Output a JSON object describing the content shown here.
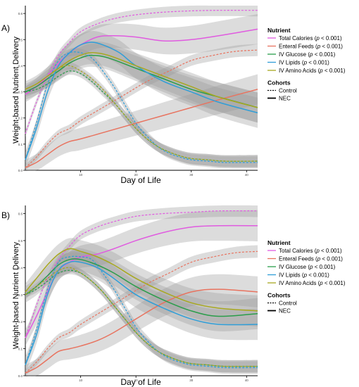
{
  "chart_data": [
    {
      "panel_label": "A)",
      "type": "line",
      "xlabel": "Day of Life",
      "ylabel": "Weight-based Nutrient Delivery",
      "xticks": [
        10,
        20,
        30,
        40
      ],
      "yticks": [
        0.0,
        0.1,
        0.2,
        0.3,
        0.4,
        0.5,
        0.6
      ],
      "xlim": [
        0,
        42
      ],
      "ylim": [
        0,
        0.63
      ],
      "series": [
        {
          "name": "Total Calories",
          "color": "#e05be0",
          "cohort": "Control",
          "x": [
            0,
            2,
            4,
            6,
            8,
            10,
            13,
            16,
            20,
            25,
            30,
            35,
            42
          ],
          "y": [
            0.14,
            0.26,
            0.36,
            0.44,
            0.49,
            0.53,
            0.56,
            0.58,
            0.595,
            0.605,
            0.61,
            0.612,
            0.612
          ]
        },
        {
          "name": "Total Calories",
          "color": "#e05be0",
          "cohort": "NEC",
          "x": [
            0,
            2,
            4,
            6,
            8,
            10,
            13,
            16,
            20,
            25,
            30,
            35,
            42
          ],
          "y": [
            0.29,
            0.32,
            0.36,
            0.41,
            0.45,
            0.48,
            0.51,
            0.515,
            0.51,
            0.495,
            0.5,
            0.515,
            0.54
          ]
        },
        {
          "name": "Enteral Feeds",
          "color": "#e8735f",
          "cohort": "Control",
          "x": [
            0,
            2,
            4,
            6,
            8,
            10,
            14,
            18,
            22,
            26,
            30,
            34,
            38,
            42
          ],
          "y": [
            0.01,
            0.05,
            0.1,
            0.14,
            0.16,
            0.19,
            0.24,
            0.29,
            0.34,
            0.38,
            0.42,
            0.44,
            0.455,
            0.46
          ]
        },
        {
          "name": "Enteral Feeds",
          "color": "#e8735f",
          "cohort": "NEC",
          "x": [
            0,
            2,
            4,
            6,
            8,
            10,
            15,
            20,
            25,
            30,
            35,
            42
          ],
          "y": [
            0.01,
            0.03,
            0.06,
            0.09,
            0.11,
            0.12,
            0.15,
            0.18,
            0.21,
            0.24,
            0.27,
            0.31
          ]
        },
        {
          "name": "IV Glucose",
          "color": "#2a9d4a",
          "cohort": "Control",
          "x": [
            0,
            2,
            4,
            6,
            8,
            10,
            12,
            14,
            16,
            18,
            20,
            22,
            24,
            26,
            28,
            30,
            33,
            36,
            42
          ],
          "y": [
            0.3,
            0.31,
            0.33,
            0.36,
            0.38,
            0.37,
            0.34,
            0.3,
            0.26,
            0.21,
            0.16,
            0.12,
            0.09,
            0.07,
            0.055,
            0.045,
            0.04,
            0.035,
            0.035
          ]
        },
        {
          "name": "IV Glucose",
          "color": "#2a9d4a",
          "cohort": "NEC",
          "x": [
            0,
            2,
            4,
            6,
            8,
            10,
            12,
            15,
            20,
            25,
            30,
            35,
            42
          ],
          "y": [
            0.3,
            0.32,
            0.35,
            0.38,
            0.41,
            0.43,
            0.44,
            0.43,
            0.39,
            0.35,
            0.31,
            0.28,
            0.24
          ]
        },
        {
          "name": "IV Lipids",
          "color": "#2f9ed8",
          "cohort": "Control",
          "x": [
            0,
            2,
            4,
            6,
            8,
            10,
            12,
            14,
            16,
            18,
            20,
            22,
            24,
            26,
            28,
            30,
            33,
            36,
            42
          ],
          "y": [
            0.04,
            0.18,
            0.33,
            0.42,
            0.45,
            0.45,
            0.43,
            0.38,
            0.32,
            0.25,
            0.18,
            0.13,
            0.09,
            0.065,
            0.05,
            0.04,
            0.035,
            0.03,
            0.03
          ]
        },
        {
          "name": "IV Lipids",
          "color": "#2f9ed8",
          "cohort": "NEC",
          "x": [
            0,
            2,
            4,
            6,
            8,
            10,
            12,
            14,
            17,
            20,
            25,
            30,
            35,
            42
          ],
          "y": [
            0.04,
            0.16,
            0.3,
            0.4,
            0.45,
            0.48,
            0.49,
            0.48,
            0.45,
            0.4,
            0.34,
            0.3,
            0.26,
            0.22
          ]
        },
        {
          "name": "IV Amino Acids",
          "color": "#a8a81f",
          "cohort": "Control",
          "x": [
            0,
            2,
            4,
            6,
            8,
            10,
            12,
            14,
            16,
            18,
            20,
            22,
            24,
            26,
            28,
            30,
            33,
            36,
            42
          ],
          "y": [
            0.31,
            0.33,
            0.36,
            0.39,
            0.4,
            0.38,
            0.35,
            0.31,
            0.26,
            0.21,
            0.16,
            0.12,
            0.09,
            0.07,
            0.055,
            0.045,
            0.04,
            0.035,
            0.035
          ]
        },
        {
          "name": "IV Amino Acids",
          "color": "#a8a81f",
          "cohort": "NEC",
          "x": [
            0,
            2,
            4,
            6,
            8,
            10,
            12,
            15,
            20,
            25,
            30,
            35,
            42
          ],
          "y": [
            0.31,
            0.33,
            0.36,
            0.39,
            0.42,
            0.44,
            0.45,
            0.44,
            0.4,
            0.36,
            0.32,
            0.28,
            0.24
          ]
        }
      ]
    },
    {
      "panel_label": "B)",
      "type": "line",
      "xlabel": "Day of Life",
      "ylabel": "Weight-based Nutrient Delivery",
      "xticks": [
        10,
        20,
        30,
        40
      ],
      "yticks": [
        0.0,
        0.1,
        0.2,
        0.3,
        0.4,
        0.5,
        0.6
      ],
      "xlim": [
        0,
        42
      ],
      "ylim": [
        0,
        0.63
      ],
      "series": [
        {
          "name": "Total Calories",
          "color": "#e05be0",
          "cohort": "Control",
          "x": [
            0,
            2,
            4,
            6,
            8,
            10,
            13,
            16,
            20,
            25,
            30,
            35,
            42
          ],
          "y": [
            0.14,
            0.26,
            0.36,
            0.43,
            0.48,
            0.52,
            0.55,
            0.57,
            0.59,
            0.6,
            0.605,
            0.61,
            0.61
          ]
        },
        {
          "name": "Total Calories",
          "color": "#e05be0",
          "cohort": "NEC",
          "x": [
            0,
            2,
            4,
            6,
            8,
            10,
            13,
            16,
            20,
            25,
            30,
            35,
            42
          ],
          "y": [
            0.14,
            0.22,
            0.31,
            0.39,
            0.42,
            0.44,
            0.45,
            0.47,
            0.5,
            0.53,
            0.55,
            0.555,
            0.555
          ]
        },
        {
          "name": "Enteral Feeds",
          "color": "#e8735f",
          "cohort": "Control",
          "x": [
            0,
            2,
            4,
            6,
            8,
            10,
            14,
            18,
            22,
            26,
            30,
            34,
            38,
            42
          ],
          "y": [
            0.01,
            0.05,
            0.1,
            0.14,
            0.16,
            0.19,
            0.24,
            0.29,
            0.34,
            0.38,
            0.42,
            0.44,
            0.455,
            0.46
          ]
        },
        {
          "name": "Enteral Feeds",
          "color": "#e8735f",
          "cohort": "NEC",
          "x": [
            0,
            2,
            4,
            6,
            8,
            10,
            13,
            16,
            20,
            25,
            30,
            35,
            42
          ],
          "y": [
            0.01,
            0.03,
            0.06,
            0.09,
            0.1,
            0.11,
            0.13,
            0.16,
            0.21,
            0.27,
            0.31,
            0.32,
            0.31
          ]
        },
        {
          "name": "IV Glucose",
          "color": "#2a9d4a",
          "cohort": "Control",
          "x": [
            0,
            2,
            4,
            6,
            8,
            10,
            12,
            14,
            16,
            18,
            20,
            22,
            24,
            26,
            28,
            30,
            33,
            36,
            42
          ],
          "y": [
            0.3,
            0.32,
            0.35,
            0.38,
            0.39,
            0.38,
            0.35,
            0.31,
            0.26,
            0.21,
            0.16,
            0.12,
            0.09,
            0.07,
            0.055,
            0.045,
            0.04,
            0.035,
            0.035
          ]
        },
        {
          "name": "IV Glucose",
          "color": "#2a9d4a",
          "cohort": "NEC",
          "x": [
            0,
            2,
            4,
            6,
            8,
            10,
            13,
            16,
            20,
            25,
            30,
            35,
            42
          ],
          "y": [
            0.3,
            0.33,
            0.37,
            0.41,
            0.43,
            0.43,
            0.41,
            0.38,
            0.33,
            0.28,
            0.24,
            0.22,
            0.23
          ]
        },
        {
          "name": "IV Lipids",
          "color": "#2f9ed8",
          "cohort": "Control",
          "x": [
            0,
            2,
            4,
            6,
            8,
            10,
            12,
            14,
            16,
            18,
            20,
            22,
            24,
            26,
            28,
            30,
            33,
            36,
            42
          ],
          "y": [
            0.04,
            0.17,
            0.32,
            0.42,
            0.44,
            0.44,
            0.43,
            0.38,
            0.32,
            0.25,
            0.18,
            0.13,
            0.09,
            0.065,
            0.05,
            0.04,
            0.035,
            0.03,
            0.03
          ]
        },
        {
          "name": "IV Lipids",
          "color": "#2f9ed8",
          "cohort": "NEC",
          "x": [
            0,
            2,
            4,
            6,
            8,
            10,
            13,
            16,
            20,
            25,
            30,
            35,
            42
          ],
          "y": [
            0.04,
            0.15,
            0.3,
            0.39,
            0.42,
            0.42,
            0.4,
            0.36,
            0.3,
            0.25,
            0.21,
            0.19,
            0.19
          ]
        },
        {
          "name": "IV Amino Acids",
          "color": "#a8a81f",
          "cohort": "Control",
          "x": [
            0,
            2,
            4,
            6,
            8,
            10,
            12,
            14,
            16,
            18,
            20,
            22,
            24,
            26,
            28,
            30,
            33,
            36,
            42
          ],
          "y": [
            0.3,
            0.33,
            0.36,
            0.39,
            0.4,
            0.38,
            0.35,
            0.31,
            0.26,
            0.21,
            0.16,
            0.12,
            0.09,
            0.07,
            0.055,
            0.045,
            0.04,
            0.035,
            0.035
          ]
        },
        {
          "name": "IV Amino Acids",
          "color": "#a8a81f",
          "cohort": "NEC",
          "x": [
            0,
            2,
            4,
            6,
            8,
            10,
            13,
            16,
            20,
            25,
            30,
            35,
            42
          ],
          "y": [
            0.31,
            0.36,
            0.41,
            0.45,
            0.47,
            0.46,
            0.44,
            0.41,
            0.36,
            0.31,
            0.27,
            0.25,
            0.24
          ]
        }
      ]
    }
  ],
  "legend": {
    "nutrient_title": "Nutrient",
    "items": [
      {
        "label": "Total Calories",
        "pval": "p",
        "pval_rest": " < 0.001)",
        "color": "#e05be0"
      },
      {
        "label": "Enteral Feeds",
        "pval": "p",
        "pval_rest": " < 0.001)",
        "color": "#e8735f"
      },
      {
        "label": "IV Glucose",
        "pval": "p",
        "pval_rest": " < 0.001)",
        "color": "#2a9d4a"
      },
      {
        "label": "IV Lipids",
        "pval": "p",
        "pval_rest": " < 0.001)",
        "color": "#2f9ed8"
      },
      {
        "label": "IV Amino Acids",
        "pval": "p",
        "pval_rest": " < 0.001)",
        "color": "#a8a81f"
      }
    ],
    "cohorts_title": "Cohorts",
    "cohorts": [
      {
        "label": "Control",
        "style": "dashed"
      },
      {
        "label": "NEC",
        "style": "solid"
      }
    ]
  }
}
